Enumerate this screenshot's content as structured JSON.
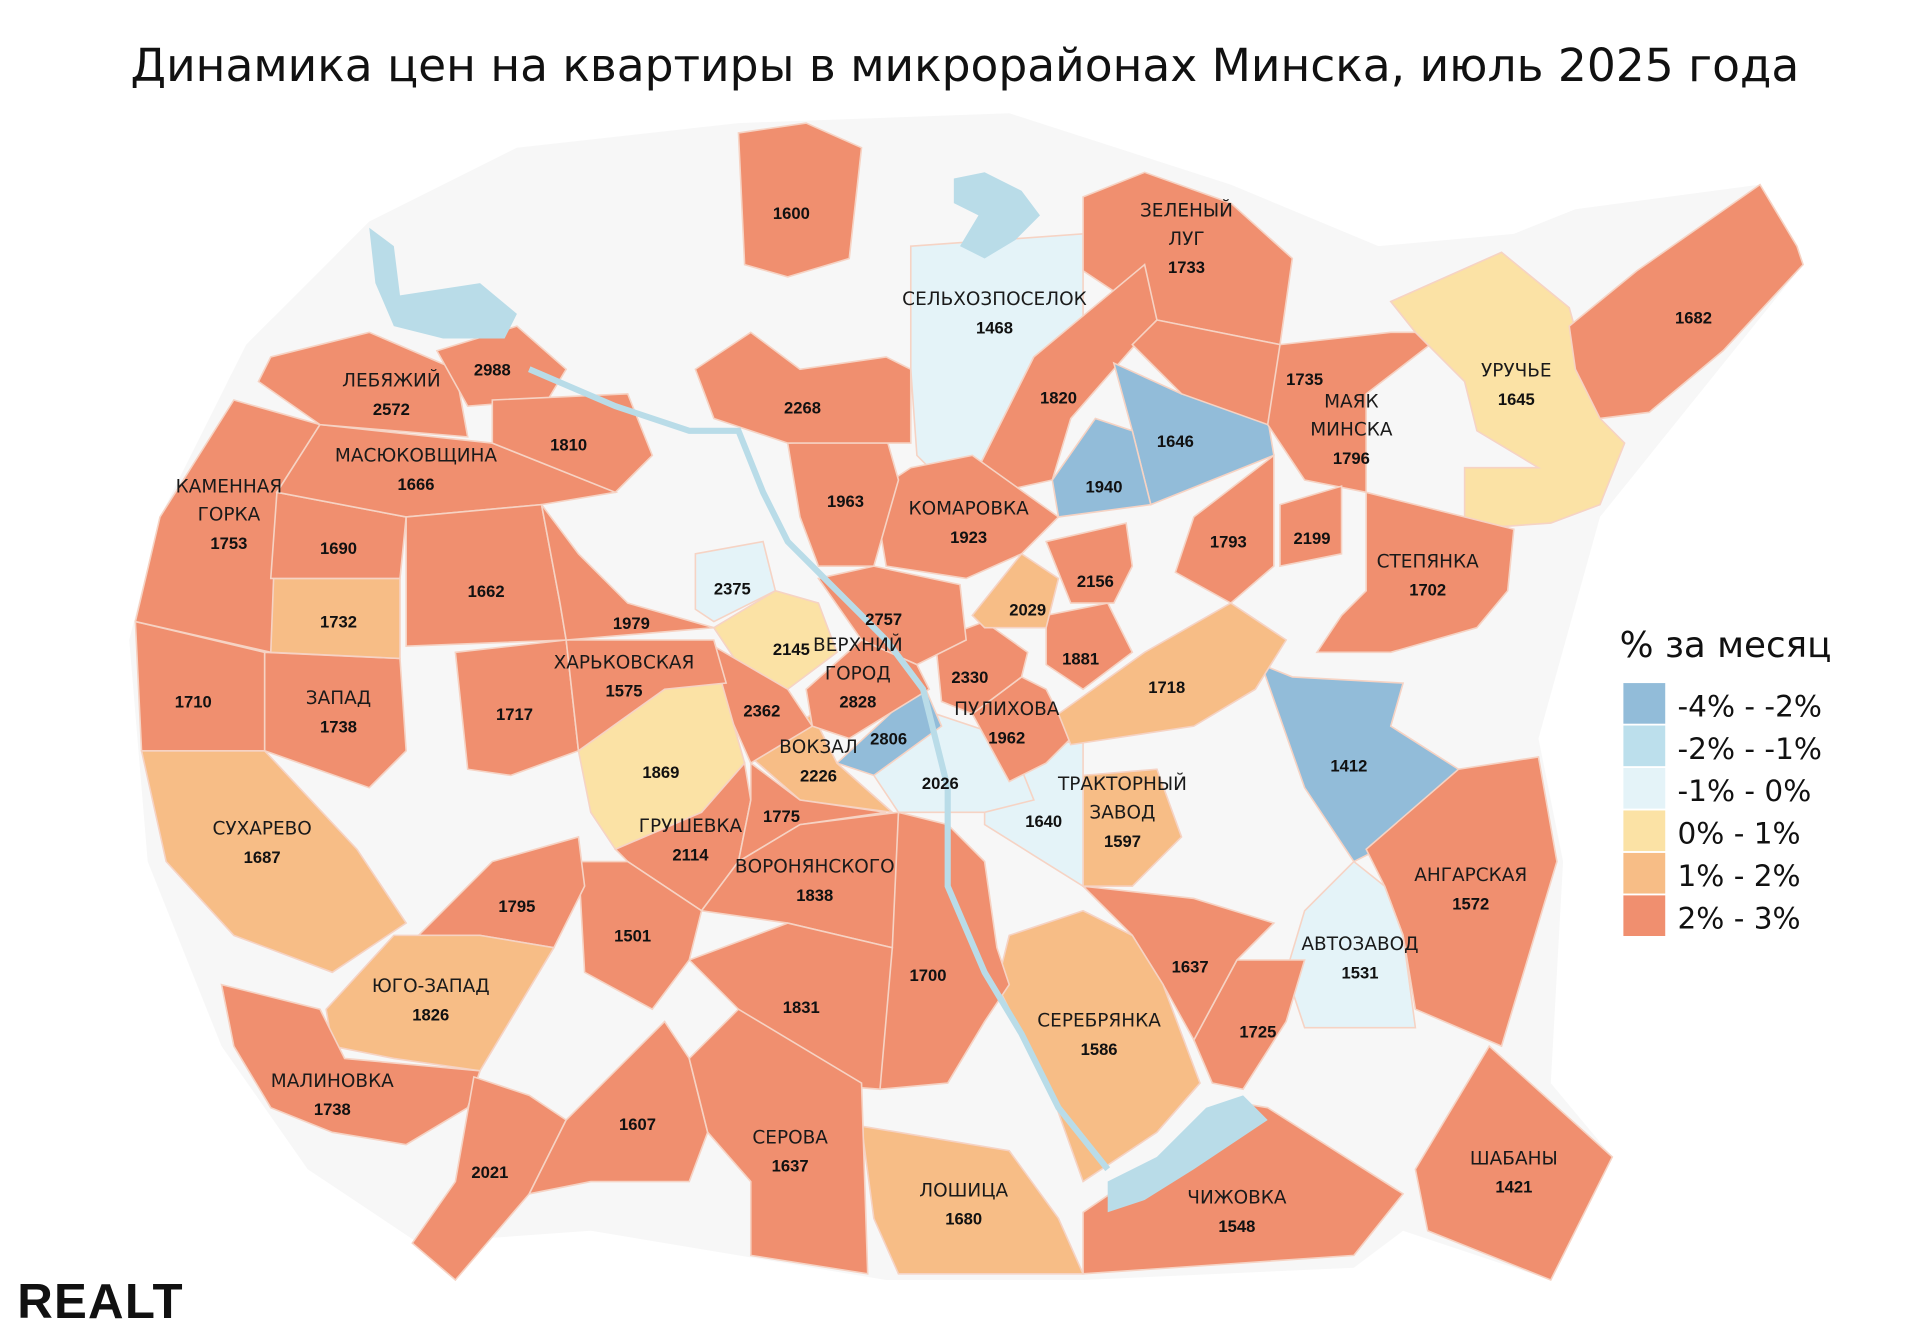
{
  "title": "Динамика цен на квартиры в микрорайонах Минска, июль 2025 года",
  "logo": "REALT",
  "legend": {
    "title": "% за месяц",
    "items": [
      {
        "label": "-4% - -2%",
        "color": "#92bcd9"
      },
      {
        "label": "-2% - -1%",
        "color": "#bcdfec"
      },
      {
        "label": "-1% - 0%",
        "color": "#e4f3f8"
      },
      {
        "label": "0% - 1%",
        "color": "#fbe2a5"
      },
      {
        "label": "1% - 2%",
        "color": "#f7bd86"
      },
      {
        "label": "2% - 3%",
        "color": "#f08f6f"
      }
    ]
  },
  "colors": {
    "background": "#f7f7f7",
    "water": "#b9dce8",
    "border": "#f6d3c4"
  },
  "regions": [
    {
      "name": [],
      "value": "1600",
      "cat": 5
    },
    {
      "name": [
        "СЕЛЬХОЗПОСЕЛОК"
      ],
      "value": "1468",
      "cat": 2
    },
    {
      "name": [
        "ЗЕЛЕНЫЙ",
        "ЛУГ"
      ],
      "value": "1733",
      "cat": 5
    },
    {
      "name": [],
      "value": "1820",
      "cat": 5
    },
    {
      "name": [],
      "value": "1646",
      "cat": 0
    },
    {
      "name": [],
      "value": "1940",
      "cat": 0
    },
    {
      "name": [],
      "value": "1735",
      "cat": 5
    },
    {
      "name": [
        "МАЯК",
        "МИНСКА"
      ],
      "value": "1796",
      "cat": 5
    },
    {
      "name": [
        "УРУЧЬЕ"
      ],
      "value": "1645",
      "cat": 3
    },
    {
      "name": [],
      "value": "1682",
      "cat": 5
    },
    {
      "name": [],
      "value": "1793",
      "cat": 5
    },
    {
      "name": [],
      "value": "2199",
      "cat": 5
    },
    {
      "name": [
        "СТЕПЯНКА"
      ],
      "value": "1702",
      "cat": 5
    },
    {
      "name": [],
      "value": "1412",
      "cat": 0
    },
    {
      "name": [
        "АНГАРСКАЯ"
      ],
      "value": "1572",
      "cat": 5
    },
    {
      "name": [
        "АВТОЗАВОД"
      ],
      "value": "1531",
      "cat": 2
    },
    {
      "name": [
        "ШАБАНЫ"
      ],
      "value": "1421",
      "cat": 5
    },
    {
      "name": [
        "ЧИЖОВКА"
      ],
      "value": "1548",
      "cat": 5
    },
    {
      "name": [],
      "value": "1725",
      "cat": 5
    },
    {
      "name": [],
      "value": "1637",
      "cat": 5
    },
    {
      "name": [
        "СЕРЕБРЯНКА"
      ],
      "value": "1586",
      "cat": 4
    },
    {
      "name": [
        "ЛОШИЦА"
      ],
      "value": "1680",
      "cat": 4
    },
    {
      "name": [],
      "value": "1700",
      "cat": 5
    },
    {
      "name": [
        "ТРАКТОРНЫЙ",
        "ЗАВОД"
      ],
      "value": "1597",
      "cat": 4
    },
    {
      "name": [],
      "value": "1640",
      "cat": 2
    },
    {
      "name": [],
      "value": "2026",
      "cat": 2
    },
    {
      "name": [],
      "value": "2806",
      "cat": 0
    },
    {
      "name": [
        "ВОКЗАЛ"
      ],
      "value": "2226",
      "cat": 4
    },
    {
      "name": [
        "ПУЛИХОВА"
      ],
      "value": "1962",
      "cat": 5
    },
    {
      "name": [],
      "value": "2330",
      "cat": 5
    },
    {
      "name": [],
      "value": "1881",
      "cat": 5
    },
    {
      "name": [],
      "value": "2029",
      "cat": 4
    },
    {
      "name": [],
      "value": "2156",
      "cat": 5
    },
    {
      "name": [],
      "value": "1718",
      "cat": 4
    },
    {
      "name": [
        "КОМАРОВКА"
      ],
      "value": "1923",
      "cat": 5
    },
    {
      "name": [],
      "value": "2757",
      "cat": 5
    },
    {
      "name": [
        "ВЕРХНИЙ",
        "ГОРОД"
      ],
      "value": "2828",
      "cat": 5
    },
    {
      "name": [],
      "value": "2145",
      "cat": 3
    },
    {
      "name": [],
      "value": "2375",
      "cat": 2
    },
    {
      "name": [],
      "value": "1963",
      "cat": 5
    },
    {
      "name": [],
      "value": "2268",
      "cat": 5
    },
    {
      "name": [],
      "value": "2362",
      "cat": 5
    },
    {
      "name": [],
      "value": "1869",
      "cat": 3
    },
    {
      "name": [
        "ГРУШЕВКА"
      ],
      "value": "2114",
      "cat": 5
    },
    {
      "name": [],
      "value": "1775",
      "cat": 5
    },
    {
      "name": [
        "ВОРОНЯНСКОГО"
      ],
      "value": "1838",
      "cat": 5
    },
    {
      "name": [],
      "value": "1831",
      "cat": 5
    },
    {
      "name": [],
      "value": "1501",
      "cat": 5
    },
    {
      "name": [],
      "value": "1795",
      "cat": 5
    },
    {
      "name": [
        "ЮГО-ЗАПАД"
      ],
      "value": "1826",
      "cat": 4
    },
    {
      "name": [
        "СУХАРЕВО"
      ],
      "value": "1687",
      "cat": 4
    },
    {
      "name": [
        "МАЛИНОВКА"
      ],
      "value": "1738",
      "cat": 5
    },
    {
      "name": [],
      "value": "2021",
      "cat": 5
    },
    {
      "name": [],
      "value": "1607",
      "cat": 5
    },
    {
      "name": [
        "СЕРОВА"
      ],
      "value": "1637",
      "cat": 5
    },
    {
      "name": [
        "ЗАПАД"
      ],
      "value": "1738",
      "cat": 5
    },
    {
      "name": [],
      "value": "1732",
      "cat": 4
    },
    {
      "name": [],
      "value": "1710",
      "cat": 5
    },
    {
      "name": [
        "КАМЕННАЯ",
        "ГОРКА"
      ],
      "value": "1753",
      "cat": 5
    },
    {
      "name": [],
      "value": "1690",
      "cat": 5
    },
    {
      "name": [
        "МАСЮКОВЩИНА"
      ],
      "value": "1666",
      "cat": 5
    },
    {
      "name": [
        "ЛЕБЯЖИЙ"
      ],
      "value": "2572",
      "cat": 5
    },
    {
      "name": [],
      "value": "2988",
      "cat": 5
    },
    {
      "name": [],
      "value": "1810",
      "cat": 5
    },
    {
      "name": [],
      "value": "1662",
      "cat": 5
    },
    {
      "name": [],
      "value": "1717",
      "cat": 5
    },
    {
      "name": [
        "ХАРЬКОВСКАЯ"
      ],
      "value": "1575",
      "cat": 5
    },
    {
      "name": [],
      "value": "1979",
      "cat": 5
    }
  ]
}
